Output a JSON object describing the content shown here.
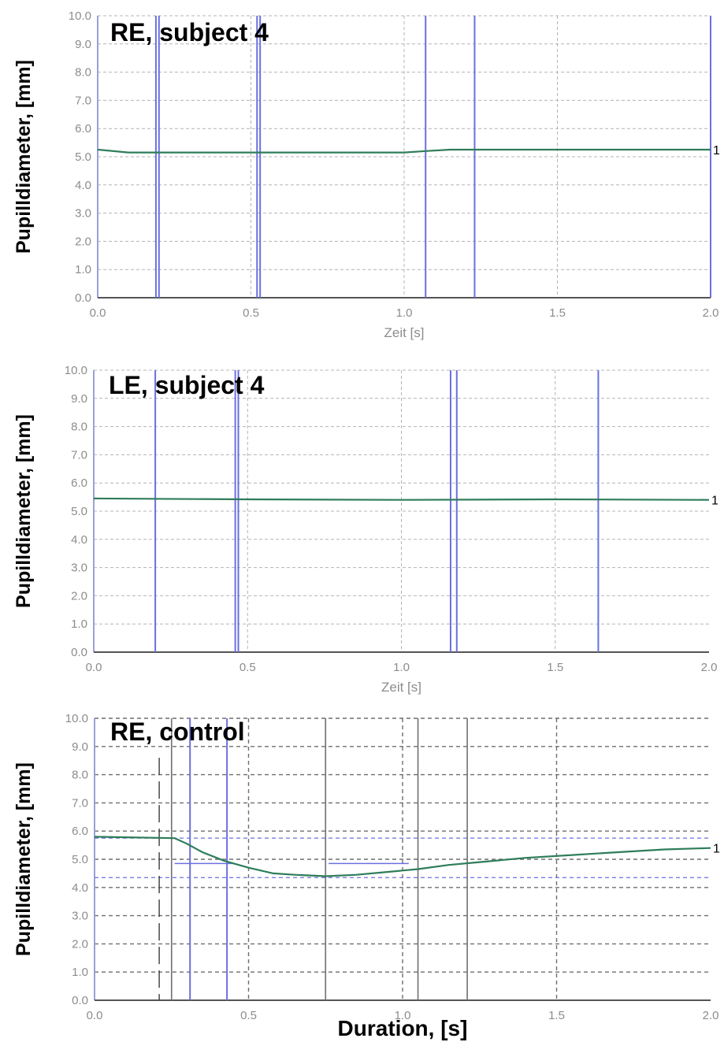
{
  "chart_data": [
    {
      "type": "line",
      "title": "RE, subject 4",
      "xlabel": "Zeit [s]",
      "ylabel": "Pupilldiameter, [mm]",
      "xlim": [
        0,
        2
      ],
      "ylim": [
        0,
        10
      ],
      "x_ticks": [
        "0.0",
        "0.5",
        "1.0",
        "1.5",
        "2.0"
      ],
      "y_ticks": [
        "0.0",
        "1.0",
        "2.0",
        "3.0",
        "4.0",
        "5.0",
        "6.0",
        "7.0",
        "8.0",
        "9.0",
        "10.0"
      ],
      "grid": true,
      "series": [
        {
          "name": "1",
          "x": [
            0.0,
            0.1,
            0.5,
            1.0,
            1.07,
            1.15,
            1.5,
            2.0
          ],
          "y": [
            5.25,
            5.15,
            5.15,
            5.15,
            5.2,
            5.25,
            5.25,
            5.25
          ]
        }
      ],
      "markers_x": [
        0.19,
        0.2,
        0.52,
        0.53,
        1.07,
        1.23,
        2.0
      ],
      "colors": {
        "line": "#2e7d5a",
        "marker": "#6a70e0",
        "grid": "#b4b4b4"
      }
    },
    {
      "type": "line",
      "title": "LE, subject 4",
      "xlabel": "Zeit [s]",
      "ylabel": "Pupilldiameter, [mm]",
      "xlim": [
        0,
        2
      ],
      "ylim": [
        0,
        10
      ],
      "x_ticks": [
        "0.0",
        "0.5",
        "1.0",
        "1.5",
        "2.0"
      ],
      "y_ticks": [
        "0.0",
        "1.0",
        "2.0",
        "3.0",
        "4.0",
        "5.0",
        "6.0",
        "7.0",
        "8.0",
        "9.0",
        "10.0"
      ],
      "grid": true,
      "series": [
        {
          "name": "1",
          "x": [
            0.0,
            0.5,
            1.0,
            1.5,
            2.0
          ],
          "y": [
            5.45,
            5.42,
            5.4,
            5.42,
            5.4
          ]
        }
      ],
      "markers_x": [
        0.2,
        0.46,
        0.47,
        1.16,
        1.18,
        1.64
      ],
      "colors": {
        "line": "#2e7d5a",
        "marker": "#6a70e0",
        "grid": "#b4b4b4"
      }
    },
    {
      "type": "line",
      "title": "RE, control",
      "xlabel": "Duration, [s]",
      "ylabel": "Pupilldiameter, [mm]",
      "xlim": [
        0,
        2
      ],
      "ylim": [
        0,
        10
      ],
      "x_ticks": [
        "0.0",
        "0.5",
        "1.0",
        "1.5",
        "2.0"
      ],
      "y_ticks": [
        "0.0",
        "1.0",
        "2.0",
        "3.0",
        "4.0",
        "5.0",
        "6.0",
        "7.0",
        "8.0",
        "9.0",
        "10.0"
      ],
      "grid": true,
      "series": [
        {
          "name": "1",
          "x": [
            0.0,
            0.26,
            0.3,
            0.35,
            0.42,
            0.5,
            0.58,
            0.65,
            0.75,
            0.85,
            0.95,
            1.05,
            1.15,
            1.25,
            1.4,
            1.55,
            1.7,
            1.85,
            2.0
          ],
          "y": [
            5.8,
            5.75,
            5.55,
            5.25,
            4.95,
            4.7,
            4.5,
            4.45,
            4.4,
            4.45,
            4.55,
            4.65,
            4.8,
            4.9,
            5.05,
            5.15,
            5.25,
            5.35,
            5.4
          ]
        }
      ],
      "markers_x": [
        0.31,
        0.43
      ],
      "gray_markers_x": [
        0.25,
        0.75,
        1.05,
        1.21
      ],
      "dashed_markers_x": [
        0.21
      ],
      "ref_levels": [
        5.75,
        4.35
      ],
      "hsegs": [
        {
          "x": [
            0.26,
            0.45
          ],
          "y": 4.85
        },
        {
          "x": [
            0.76,
            1.02
          ],
          "y": 4.85
        }
      ],
      "colors": {
        "line": "#2e7d5a",
        "marker": "#6a70e0",
        "grid": "#6e6e6e"
      }
    }
  ]
}
